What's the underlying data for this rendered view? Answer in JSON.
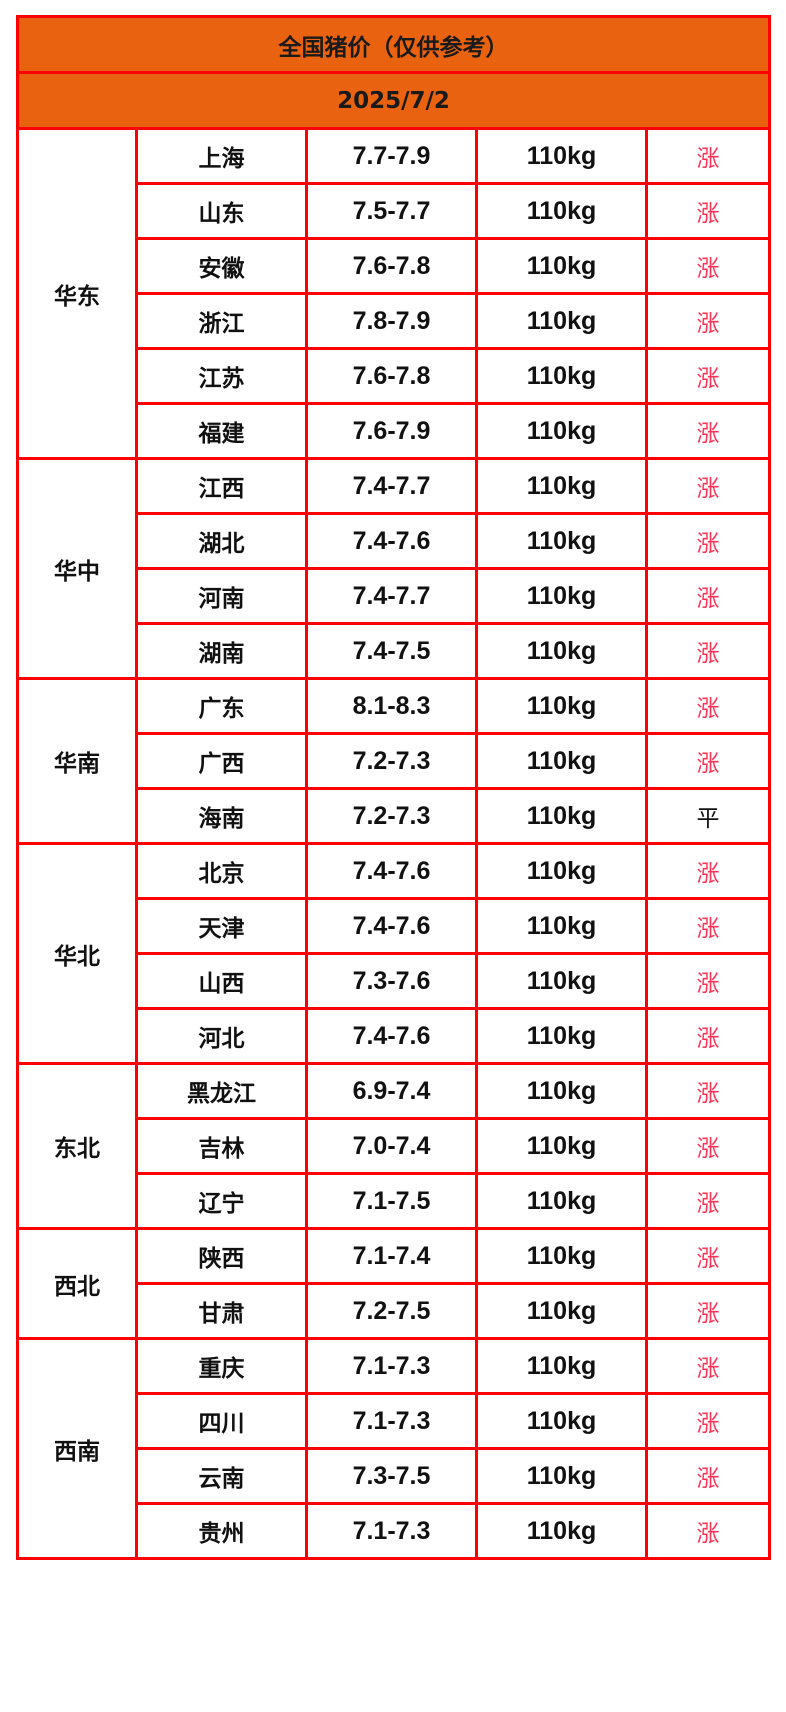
{
  "title": "全国猪价（仅供参考）",
  "date": "2025/7/2",
  "colors": {
    "header_bg": "#e8620f",
    "border": "#ff0000",
    "up": "#ff3355",
    "flat": "#111111"
  },
  "regions": [
    {
      "name": "华东",
      "rows": [
        {
          "province": "上海",
          "price": "7.7-7.9",
          "weight": "110kg",
          "trend": "涨"
        },
        {
          "province": "山东",
          "price": "7.5-7.7",
          "weight": "110kg",
          "trend": "涨"
        },
        {
          "province": "安徽",
          "price": "7.6-7.8",
          "weight": "110kg",
          "trend": "涨"
        },
        {
          "province": "浙江",
          "price": "7.8-7.9",
          "weight": "110kg",
          "trend": "涨"
        },
        {
          "province": "江苏",
          "price": "7.6-7.8",
          "weight": "110kg",
          "trend": "涨"
        },
        {
          "province": "福建",
          "price": "7.6-7.9",
          "weight": "110kg",
          "trend": "涨"
        }
      ]
    },
    {
      "name": "华中",
      "rows": [
        {
          "province": "江西",
          "price": "7.4-7.7",
          "weight": "110kg",
          "trend": "涨"
        },
        {
          "province": "湖北",
          "price": "7.4-7.6",
          "weight": "110kg",
          "trend": "涨"
        },
        {
          "province": "河南",
          "price": "7.4-7.7",
          "weight": "110kg",
          "trend": "涨"
        },
        {
          "province": "湖南",
          "price": "7.4-7.5",
          "weight": "110kg",
          "trend": "涨"
        }
      ]
    },
    {
      "name": "华南",
      "rows": [
        {
          "province": "广东",
          "price": "8.1-8.3",
          "weight": "110kg",
          "trend": "涨"
        },
        {
          "province": "广西",
          "price": "7.2-7.3",
          "weight": "110kg",
          "trend": "涨"
        },
        {
          "province": "海南",
          "price": "7.2-7.3",
          "weight": "110kg",
          "trend": "平"
        }
      ]
    },
    {
      "name": "华北",
      "rows": [
        {
          "province": "北京",
          "price": "7.4-7.6",
          "weight": "110kg",
          "trend": "涨"
        },
        {
          "province": "天津",
          "price": "7.4-7.6",
          "weight": "110kg",
          "trend": "涨"
        },
        {
          "province": "山西",
          "price": "7.3-7.6",
          "weight": "110kg",
          "trend": "涨"
        },
        {
          "province": "河北",
          "price": "7.4-7.6",
          "weight": "110kg",
          "trend": "涨"
        }
      ]
    },
    {
      "name": "东北",
      "rows": [
        {
          "province": "黑龙江",
          "price": "6.9-7.4",
          "weight": "110kg",
          "trend": "涨"
        },
        {
          "province": "吉林",
          "price": "7.0-7.4",
          "weight": "110kg",
          "trend": "涨"
        },
        {
          "province": "辽宁",
          "price": "7.1-7.5",
          "weight": "110kg",
          "trend": "涨"
        }
      ]
    },
    {
      "name": "西北",
      "rows": [
        {
          "province": "陕西",
          "price": "7.1-7.4",
          "weight": "110kg",
          "trend": "涨"
        },
        {
          "province": "甘肃",
          "price": "7.2-7.5",
          "weight": "110kg",
          "trend": "涨"
        }
      ]
    },
    {
      "name": "西南",
      "rows": [
        {
          "province": "重庆",
          "price": "7.1-7.3",
          "weight": "110kg",
          "trend": "涨"
        },
        {
          "province": "四川",
          "price": "7.1-7.3",
          "weight": "110kg",
          "trend": "涨"
        },
        {
          "province": "云南",
          "price": "7.3-7.5",
          "weight": "110kg",
          "trend": "涨"
        },
        {
          "province": "贵州",
          "price": "7.1-7.3",
          "weight": "110kg",
          "trend": "涨"
        }
      ]
    }
  ]
}
